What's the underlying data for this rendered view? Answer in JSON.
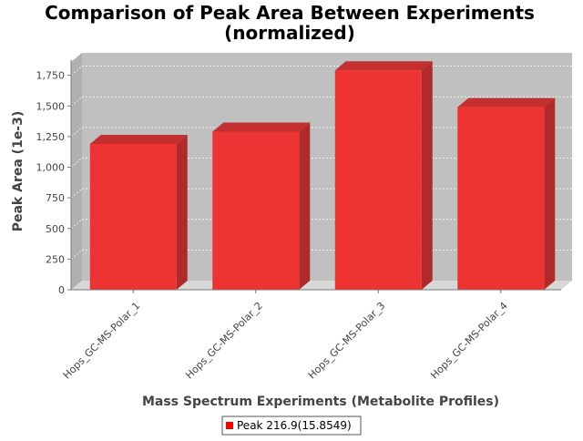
{
  "chart_data": {
    "type": "bar",
    "title": "Comparison of Peak Area Between Experiments",
    "subtitle": "(normalized)",
    "xlabel": "Mass Spectrum Experiments (Metabolite Profiles)",
    "ylabel": "Peak Area (1e-3)",
    "categories": [
      "Hops_GC-MS-Polar_1",
      "Hops_GC-MS-Polar_2",
      "Hops_GC-MS-Polar_3",
      "Hops_GC-MS-Polar_4"
    ],
    "series": [
      {
        "name": "Peak 216.9(15.8549)",
        "values": [
          1190,
          1290,
          1790,
          1490
        ]
      }
    ],
    "ylim": [
      0,
      1875
    ],
    "yticks": [
      0,
      250,
      500,
      750,
      1000,
      1250,
      1500,
      1750
    ],
    "ytick_labels": [
      "0",
      "250",
      "500",
      "750",
      "1,000",
      "1,250",
      "1,500",
      "1,750"
    ],
    "grid": true,
    "legend_position": "bottom",
    "colors": {
      "bar": "#ee3333",
      "bar_top": "#c43030",
      "bar_side": "#b02a2a",
      "plot_background": "#c0c0c0",
      "floor": "#d8d8d8",
      "legend_swatch": "#ff0000"
    }
  }
}
